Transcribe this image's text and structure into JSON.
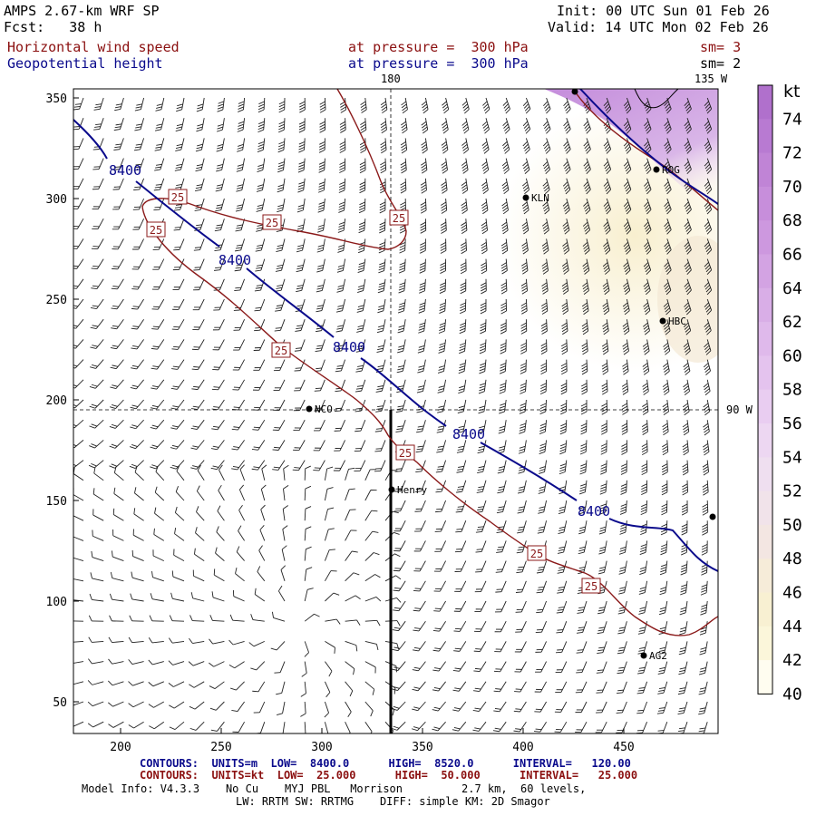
{
  "header": {
    "title": "AMPS 2.67-km WRF SP",
    "forecast": "Fcst:   38 h",
    "init": "Init: 00 UTC Sun 01 Feb 26",
    "valid": "Valid: 14 UTC Mon 02 Feb 26",
    "field1_name": "Horizontal wind speed",
    "field1_level": "at pressure =  300 hPa",
    "field1_sm": "sm= 3",
    "field2_name": "Geopotential height",
    "field2_level": "at pressure =  300 hPa",
    "field2_sm": "sm= 2"
  },
  "map": {
    "meridian_labels": [
      "180",
      "135 W",
      "90 W"
    ],
    "x_ticks": [
      "200",
      "250",
      "300",
      "350",
      "400",
      "450"
    ],
    "y_ticks": [
      "350",
      "300",
      "250",
      "200",
      "150",
      "100",
      "50"
    ],
    "stations": [
      {
        "name": "ROG"
      },
      {
        "name": "KLN"
      },
      {
        "name": "HBC"
      },
      {
        "name": "NCO"
      },
      {
        "name": "Henry"
      },
      {
        "name": "AG2"
      }
    ],
    "height_contour_label": "8400",
    "speed_contour_label": "25"
  },
  "colorbar": {
    "unit": "kt",
    "labels": [
      "74",
      "72",
      "70",
      "68",
      "66",
      "64",
      "62",
      "60",
      "58",
      "56",
      "54",
      "52",
      "50",
      "48",
      "46",
      "44",
      "42",
      "40"
    ],
    "colors": [
      "#b070cc",
      "#b87ad2",
      "#c084d6",
      "#c78edb",
      "#cd98df",
      "#d3a3e3",
      "#d9aee7",
      "#dfb9eb",
      "#e4c3ee",
      "#e9cdf1",
      "#edd7f2",
      "#efdff0",
      "#f1e3ea",
      "#f3e6e2",
      "#f6ecd9",
      "#f8f0d2",
      "#fbf6da",
      "#fffdf0"
    ]
  },
  "footer": {
    "contours1": "CONTOURS:  UNITS=m  LOW=  8400.0      HIGH=  8520.0      INTERVAL=   120.00",
    "contours2": "CONTOURS:  UNITS=kt  LOW=  25.000      HIGH=  50.000      INTERVAL=   25.000",
    "model_info": "Model Info: V4.3.3    No Cu    MYJ PBL   Morrison         2.7 km,  60 levels,",
    "model_info2": "LW: RRTM SW: RRTMG    DIFF: simple KM: 2D Smagor"
  }
}
